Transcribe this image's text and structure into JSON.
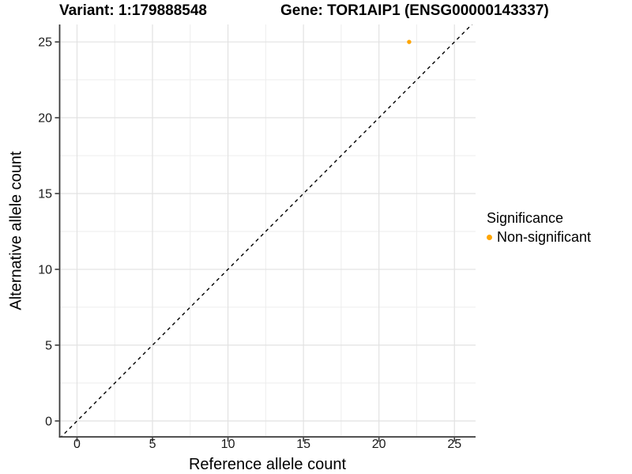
{
  "chart_data": {
    "type": "scatter",
    "title_left": "Variant: 1:179888548",
    "title_right": "Gene: TOR1AIP1 (ENSG00000143337)",
    "xlabel": "Reference allele count",
    "ylabel": "Alternative allele count",
    "xlim": [
      -1.15,
      26.4
    ],
    "ylim": [
      -1.05,
      26.15
    ],
    "x_ticks": [
      0,
      5,
      10,
      15,
      20,
      25
    ],
    "y_ticks": [
      0,
      5,
      10,
      15,
      20,
      25
    ],
    "minor_tick_step": 2.5,
    "grid": true,
    "legend_position": "right",
    "reference_line": {
      "type": "identity y=x",
      "style": "dashed",
      "color": "#000000"
    },
    "series": [
      {
        "name": "Non-significant",
        "color": "#FFA500",
        "points": [
          {
            "x": 22,
            "y": 25
          }
        ]
      }
    ],
    "legend": {
      "title": "Significance",
      "items": [
        {
          "label": "Non-significant",
          "color": "#FFA500"
        }
      ]
    },
    "colors": {
      "axis_line": "#3A3A3A",
      "tick_text": "#1A1A1A",
      "grid_major": "#E2E2E2",
      "grid_minor": "#EDEDED",
      "background": "#FFFFFF"
    }
  }
}
